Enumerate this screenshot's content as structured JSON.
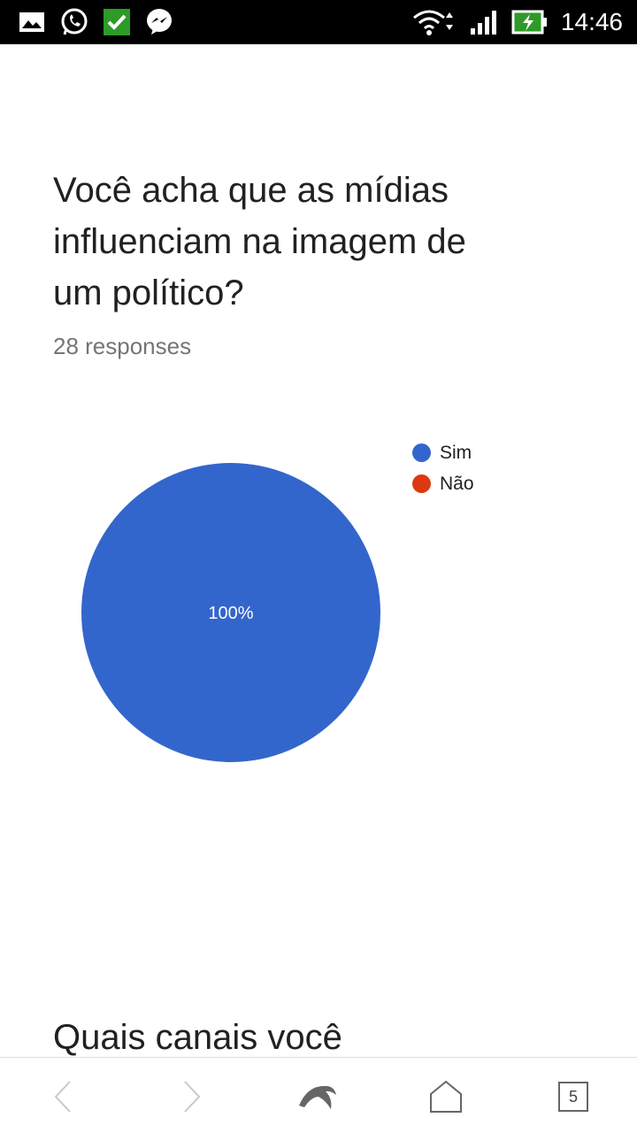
{
  "status_bar": {
    "time": "14:46",
    "icons": [
      "gallery-icon",
      "whatsapp-icon",
      "checkmark-app-icon",
      "messenger-icon",
      "wifi-icon",
      "signal-icon",
      "battery-charging-icon"
    ]
  },
  "question": {
    "title": "Você acha que as mídias influenciam na imagem de um político?",
    "responses": "28 responses"
  },
  "chart_data": {
    "type": "pie",
    "categories": [
      "Sim",
      "Não"
    ],
    "values": [
      100,
      0
    ],
    "data_labels": [
      "100%",
      ""
    ],
    "colors": [
      "#3366cc",
      "#dc3912"
    ],
    "legend_position": "top-right"
  },
  "next_question": {
    "title_partial": "Quais canais você"
  },
  "bottom_nav": {
    "tab_count": "5",
    "icons": [
      "back-icon",
      "forward-icon",
      "dolphin-icon",
      "home-icon",
      "tabs-icon"
    ]
  }
}
